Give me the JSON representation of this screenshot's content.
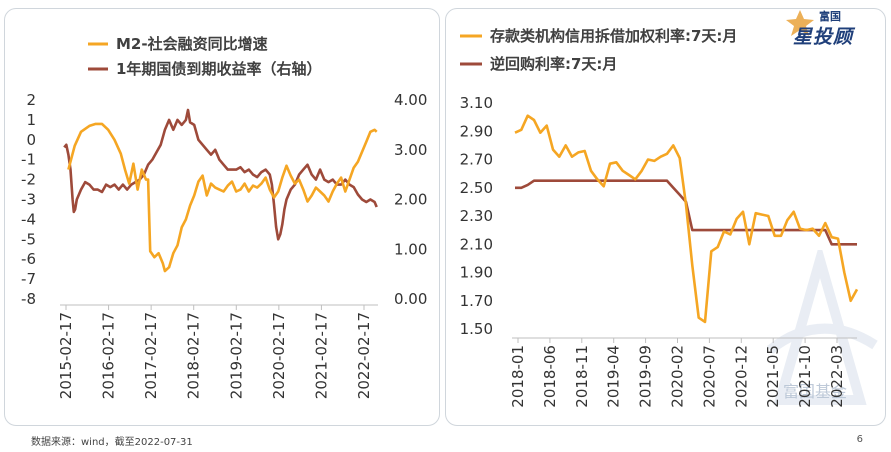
{
  "footer": {
    "source": "数据来源：wind，截至2022-07-31",
    "page": "6"
  },
  "logo": {
    "small": "富国",
    "big": "星投顾"
  },
  "watermark": {
    "text": "富国基金"
  },
  "chart_data": [
    {
      "type": "line",
      "dual_axis": true,
      "legend_position": "top-left",
      "y_left": {
        "range": [
          -8,
          2
        ],
        "ticks": [
          2,
          1,
          0,
          -1,
          -2,
          -3,
          -4,
          -5,
          -6,
          -7,
          -8
        ],
        "tick_labels": [
          "2",
          "1",
          "0",
          "-1",
          "-2",
          "-3",
          "-4",
          "-5",
          "-6",
          "-7",
          "-8"
        ]
      },
      "y_right": {
        "range": [
          0,
          4
        ],
        "ticks": [
          0,
          1,
          2,
          3,
          4
        ],
        "tick_labels": [
          "0.00",
          "1.00",
          "2.00",
          "3.00",
          "4.00"
        ]
      },
      "x_tick_labels": [
        "2015-02-17",
        "2016-02-17",
        "2017-02-17",
        "2018-02-17",
        "2019-02-17",
        "2020-02-17",
        "2021-02-17",
        "2022-02-17"
      ],
      "x_range": [
        2015.0,
        2022.58
      ],
      "series": [
        {
          "name": "M2-社会融资同比增速",
          "axis": "left",
          "color": "#F5A623",
          "x": [
            2015.2,
            2015.35,
            2015.5,
            2015.7,
            2015.85,
            2016.0,
            2016.15,
            2016.3,
            2016.45,
            2016.55,
            2016.65,
            2016.75,
            2016.85,
            2016.95,
            2017.05,
            2017.1,
            2017.15,
            2017.25,
            2017.35,
            2017.45,
            2017.5,
            2017.6,
            2017.7,
            2017.8,
            2017.9,
            2018.0,
            2018.1,
            2018.2,
            2018.3,
            2018.4,
            2018.5,
            2018.6,
            2018.7,
            2018.8,
            2018.9,
            2019.0,
            2019.1,
            2019.2,
            2019.3,
            2019.4,
            2019.5,
            2019.6,
            2019.7,
            2019.8,
            2019.9,
            2020.0,
            2020.1,
            2020.2,
            2020.3,
            2020.4,
            2020.5,
            2020.6,
            2020.7,
            2020.8,
            2020.9,
            2021.0,
            2021.1,
            2021.2,
            2021.3,
            2021.4,
            2021.5,
            2021.6,
            2021.7,
            2021.8,
            2021.9,
            2022.0,
            2022.1,
            2022.2,
            2022.3,
            2022.4,
            2022.5,
            2022.55
          ],
          "values": [
            -1.5,
            -0.3,
            0.4,
            0.7,
            0.8,
            0.8,
            0.5,
            0.0,
            -0.7,
            -1.5,
            -2.2,
            -1.2,
            -2.5,
            -1.5,
            -2.0,
            -2.0,
            -5.6,
            -5.9,
            -5.7,
            -6.2,
            -6.6,
            -6.4,
            -5.7,
            -5.3,
            -4.4,
            -4.0,
            -3.3,
            -2.8,
            -2.1,
            -1.8,
            -2.8,
            -2.2,
            -2.4,
            -2.5,
            -2.6,
            -2.3,
            -2.1,
            -2.6,
            -2.5,
            -2.2,
            -2.6,
            -2.3,
            -2.4,
            -2.2,
            -1.9,
            -2.5,
            -2.9,
            -2.6,
            -1.9,
            -1.3,
            -1.8,
            -2.2,
            -2.0,
            -2.5,
            -3.1,
            -2.8,
            -2.4,
            -2.6,
            -2.8,
            -3.1,
            -2.6,
            -2.2,
            -1.9,
            -2.6,
            -2.0,
            -1.4,
            -1.1,
            -0.6,
            -0.1,
            0.4,
            0.5,
            0.4
          ]
        },
        {
          "name": "1年期国债到期收益率（右轴）",
          "axis": "right",
          "color": "#9E4A3A",
          "x": [
            2015.1,
            2015.15,
            2015.2,
            2015.25,
            2015.3,
            2015.33,
            2015.36,
            2015.4,
            2015.5,
            2015.6,
            2015.7,
            2015.8,
            2015.9,
            2016.0,
            2016.1,
            2016.2,
            2016.3,
            2016.4,
            2016.5,
            2016.6,
            2016.7,
            2016.8,
            2016.9,
            2017.0,
            2017.1,
            2017.2,
            2017.3,
            2017.4,
            2017.5,
            2017.6,
            2017.7,
            2017.8,
            2017.9,
            2018.0,
            2018.05,
            2018.1,
            2018.2,
            2018.3,
            2018.4,
            2018.5,
            2018.6,
            2018.7,
            2018.8,
            2018.9,
            2019.0,
            2019.1,
            2019.2,
            2019.3,
            2019.4,
            2019.5,
            2019.6,
            2019.7,
            2019.8,
            2019.9,
            2020.0,
            2020.05,
            2020.1,
            2020.15,
            2020.2,
            2020.25,
            2020.3,
            2020.35,
            2020.4,
            2020.5,
            2020.6,
            2020.7,
            2020.8,
            2020.9,
            2021.0,
            2021.1,
            2021.2,
            2021.3,
            2021.4,
            2021.5,
            2021.6,
            2021.7,
            2021.8,
            2021.9,
            2022.0,
            2022.1,
            2022.2,
            2022.3,
            2022.4,
            2022.5,
            2022.55
          ],
          "values": [
            3.05,
            3.1,
            2.9,
            2.6,
            2.0,
            1.75,
            1.8,
            2.0,
            2.2,
            2.35,
            2.3,
            2.2,
            2.2,
            2.15,
            2.3,
            2.25,
            2.3,
            2.2,
            2.3,
            2.2,
            2.3,
            2.35,
            2.4,
            2.5,
            2.7,
            2.8,
            2.95,
            3.1,
            3.4,
            3.6,
            3.4,
            3.6,
            3.5,
            3.6,
            3.8,
            3.55,
            3.5,
            3.2,
            3.1,
            3.0,
            2.9,
            3.0,
            2.8,
            2.7,
            2.6,
            2.6,
            2.6,
            2.65,
            2.55,
            2.6,
            2.5,
            2.45,
            2.55,
            2.6,
            2.5,
            2.3,
            1.9,
            1.45,
            1.2,
            1.3,
            1.5,
            1.8,
            2.0,
            2.2,
            2.3,
            2.5,
            2.6,
            2.7,
            2.5,
            2.4,
            2.6,
            2.4,
            2.35,
            2.4,
            2.3,
            2.3,
            2.4,
            2.3,
            2.25,
            2.1,
            2.0,
            1.95,
            2.0,
            1.95,
            1.85
          ]
        }
      ]
    },
    {
      "type": "line",
      "legend_position": "top-left",
      "y": {
        "range": [
          1.5,
          3.1
        ],
        "ticks": [
          3.1,
          2.9,
          2.7,
          2.5,
          2.3,
          2.1,
          1.9,
          1.7,
          1.5
        ],
        "tick_labels": [
          "3.10",
          "2.90",
          "2.70",
          "2.50",
          "2.30",
          "2.10",
          "1.90",
          "1.70",
          "1.50"
        ]
      },
      "x_tick_labels": [
        "2018-01",
        "2018-06",
        "2018-11",
        "2019-04",
        "2019-09",
        "2020-02",
        "2020-07",
        "2020-12",
        "2021-05",
        "2021-10",
        "2022-03"
      ],
      "x_index_range": [
        0,
        54
      ],
      "series": [
        {
          "name": "存款类机构信用拆借加权利率:7天:月",
          "color": "#F5A623",
          "values": [
            2.89,
            2.91,
            3.01,
            2.98,
            2.89,
            2.94,
            2.77,
            2.72,
            2.8,
            2.72,
            2.75,
            2.76,
            2.62,
            2.56,
            2.51,
            2.67,
            2.68,
            2.62,
            2.59,
            2.56,
            2.62,
            2.7,
            2.69,
            2.72,
            2.74,
            2.8,
            2.71,
            2.38,
            1.95,
            1.58,
            1.55,
            2.05,
            2.08,
            2.19,
            2.17,
            2.28,
            2.33,
            2.1,
            2.32,
            2.31,
            2.3,
            2.16,
            2.16,
            2.27,
            2.33,
            2.21,
            2.2,
            2.21,
            2.16,
            2.25,
            2.15,
            2.14,
            1.9,
            1.7,
            1.78
          ]
        },
        {
          "name": "逆回购利率:7天:月",
          "color": "#9E4A3A",
          "values": [
            2.5,
            2.5,
            2.52,
            2.55,
            2.55,
            2.55,
            2.55,
            2.55,
            2.55,
            2.55,
            2.55,
            2.55,
            2.55,
            2.55,
            2.55,
            2.55,
            2.55,
            2.55,
            2.55,
            2.55,
            2.55,
            2.55,
            2.55,
            2.55,
            2.55,
            2.5,
            2.45,
            2.4,
            2.2,
            2.2,
            2.2,
            2.2,
            2.2,
            2.2,
            2.2,
            2.2,
            2.2,
            2.2,
            2.2,
            2.2,
            2.2,
            2.2,
            2.2,
            2.2,
            2.2,
            2.2,
            2.2,
            2.2,
            2.2,
            2.2,
            2.1,
            2.1,
            2.1,
            2.1,
            2.1
          ]
        }
      ]
    }
  ]
}
